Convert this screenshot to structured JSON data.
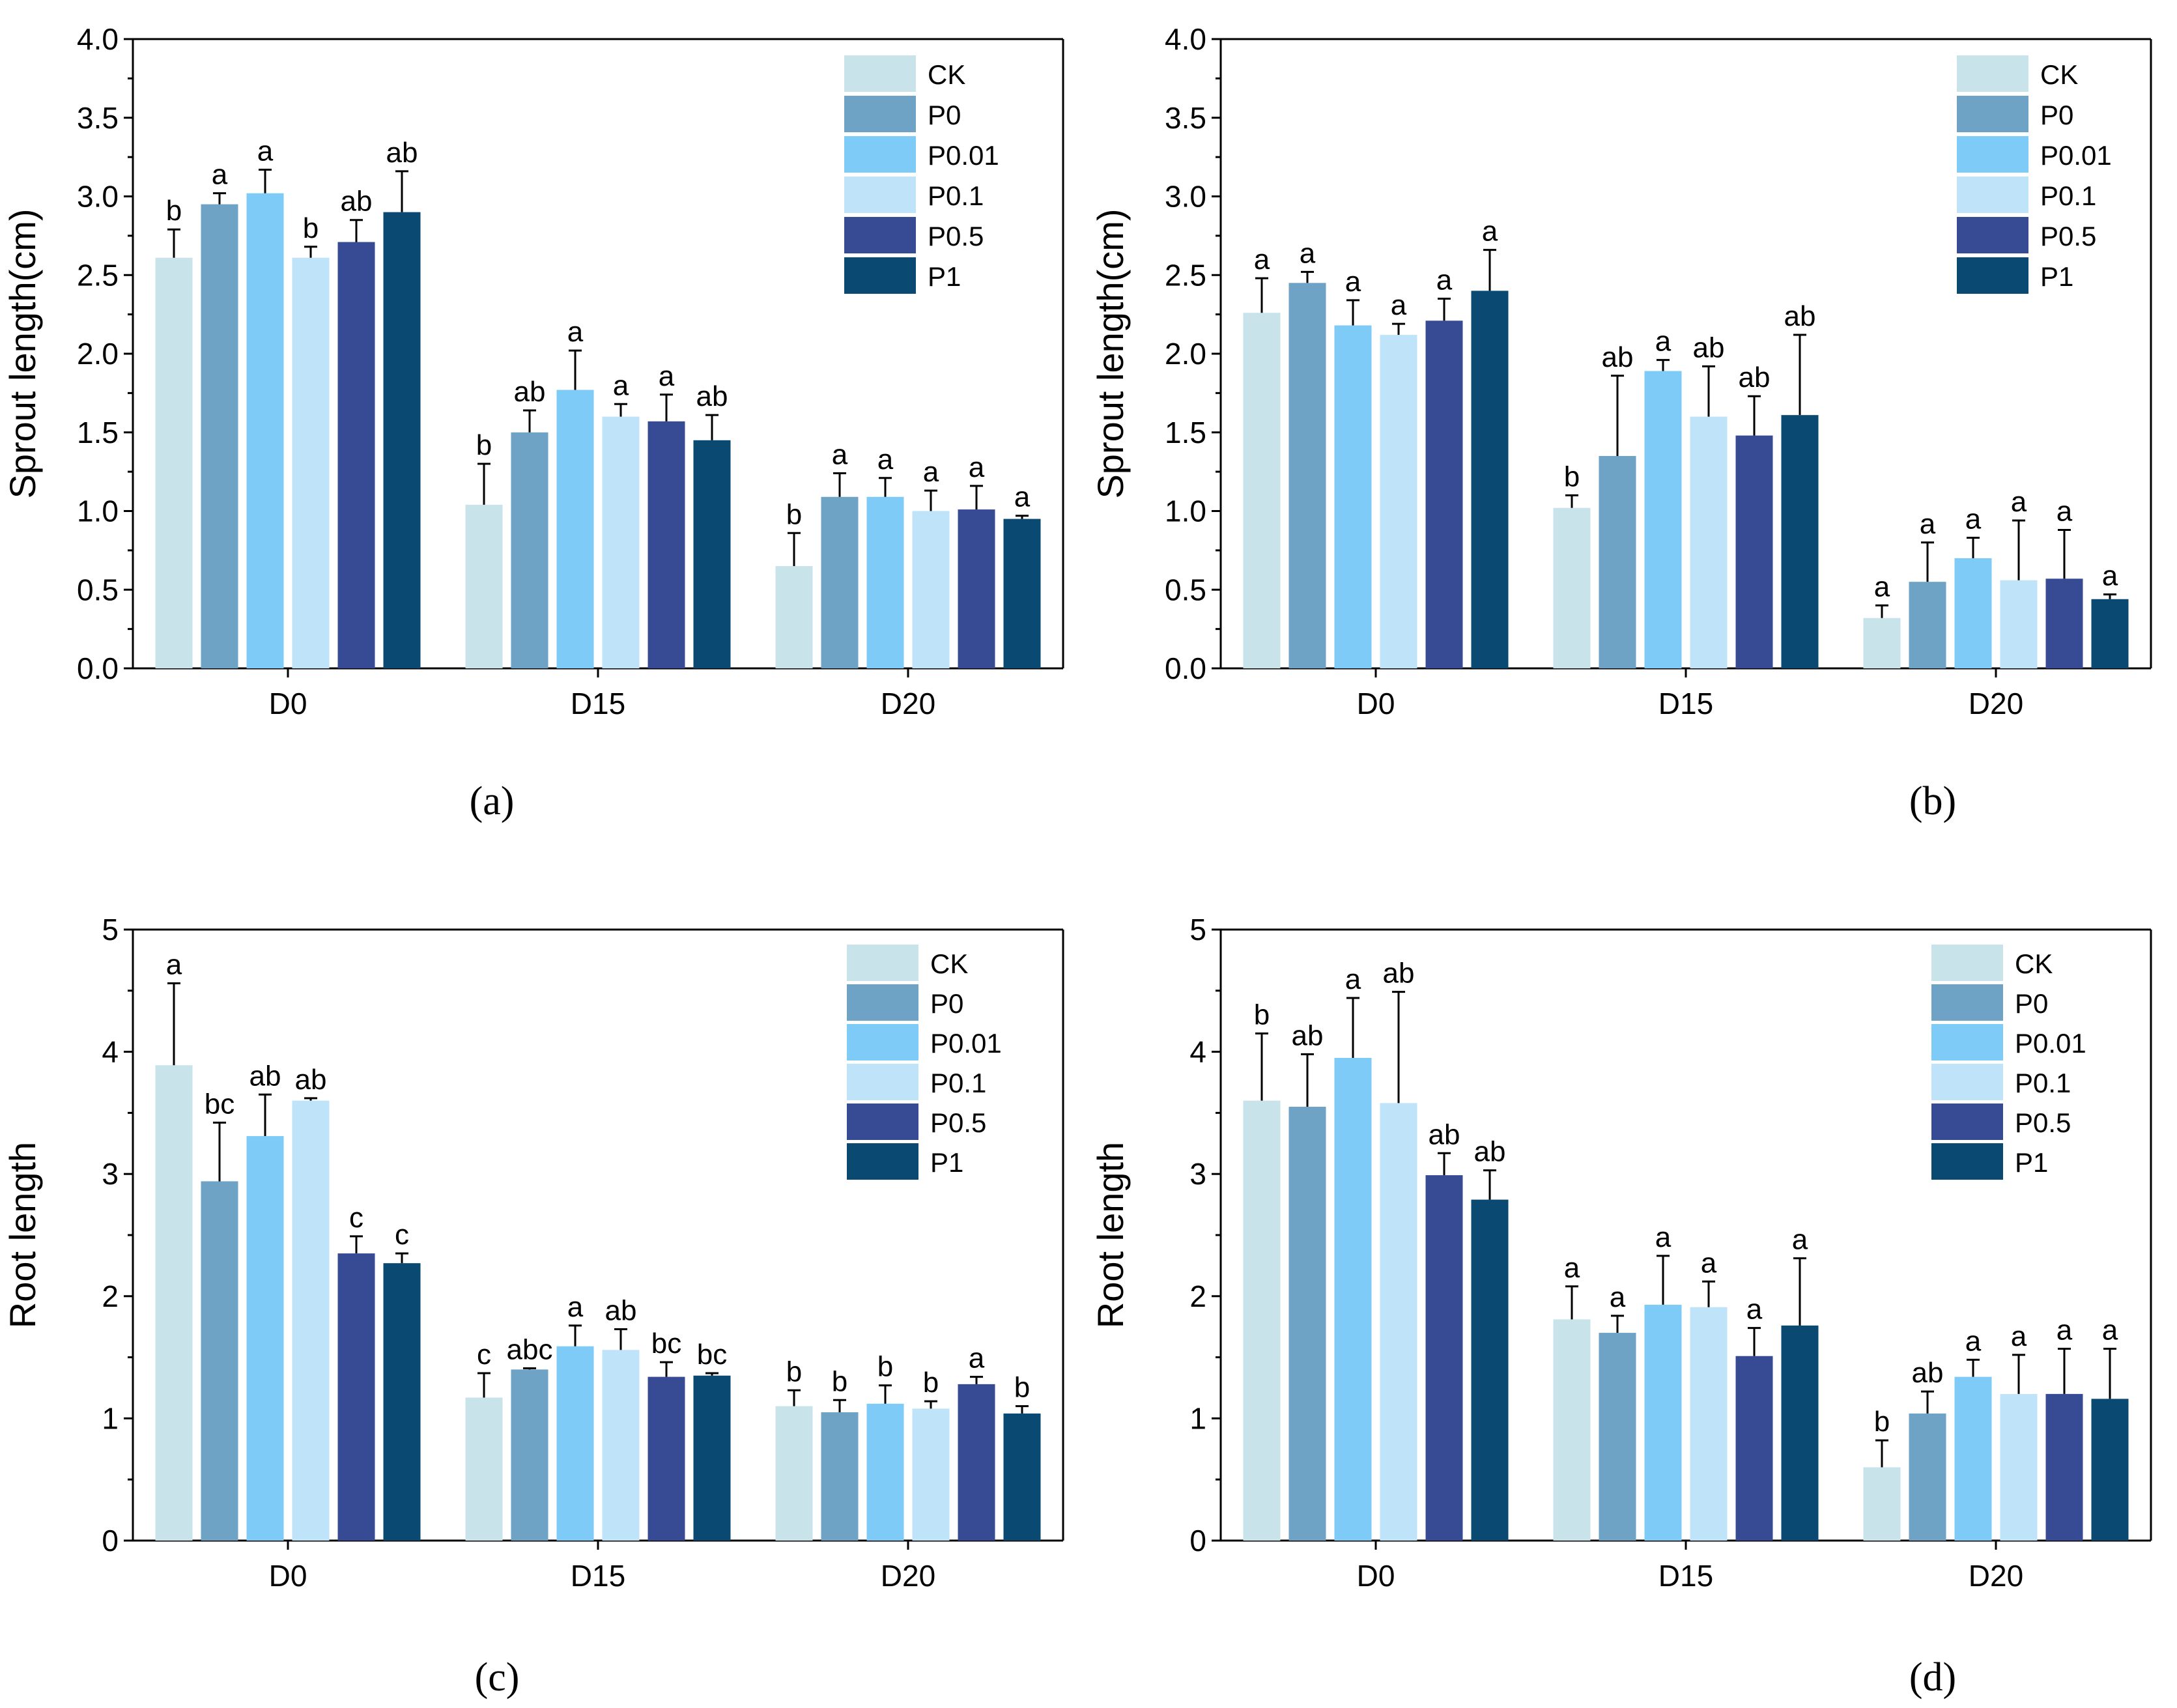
{
  "chart_data": [
    {
      "type": "bar",
      "panel_label": "(a)",
      "ylabel": "Sprout length(cm)",
      "xlabel": "",
      "ylim": [
        0,
        4.0
      ],
      "yticks": [
        "0.0",
        "0.5",
        "1.0",
        "1.5",
        "2.0",
        "2.5",
        "3.0",
        "3.5",
        "4.0"
      ],
      "categories": [
        "D0",
        "D15",
        "D20"
      ],
      "legend_placement": "top-right",
      "error_bars": true,
      "series": [
        {
          "name": "CK",
          "color": "#c9e3ea",
          "values": [
            2.61,
            1.04,
            0.65
          ],
          "errors": [
            0.18,
            0.26,
            0.21
          ],
          "letters": [
            "b",
            "b",
            "b"
          ]
        },
        {
          "name": "P0",
          "color": "#6fa3c6",
          "values": [
            2.95,
            1.5,
            1.09
          ],
          "errors": [
            0.07,
            0.14,
            0.15
          ],
          "letters": [
            "a",
            "ab",
            "a"
          ]
        },
        {
          "name": "P0.01",
          "color": "#7ecbf7",
          "values": [
            3.02,
            1.77,
            1.09
          ],
          "errors": [
            0.15,
            0.25,
            0.12
          ],
          "letters": [
            "a",
            "a",
            "a"
          ]
        },
        {
          "name": "P0.1",
          "color": "#bfe3f8",
          "values": [
            2.61,
            1.6,
            1.0
          ],
          "errors": [
            0.07,
            0.08,
            0.13
          ],
          "letters": [
            "b",
            "a",
            "a"
          ]
        },
        {
          "name": "P0.5",
          "color": "#374b94",
          "values": [
            2.71,
            1.57,
            1.01
          ],
          "errors": [
            0.14,
            0.17,
            0.15
          ],
          "letters": [
            "ab",
            "a",
            "a"
          ]
        },
        {
          "name": "P1",
          "color": "#0a4a72",
          "values": [
            2.9,
            1.45,
            0.95
          ],
          "errors": [
            0.26,
            0.16,
            0.02
          ],
          "letters": [
            "ab",
            "ab",
            "a"
          ]
        }
      ]
    },
    {
      "type": "bar",
      "panel_label": "(b)",
      "ylabel": "Sprout length(cm)",
      "xlabel": "",
      "ylim": [
        0,
        4.0
      ],
      "yticks": [
        "0.0",
        "0.5",
        "1.0",
        "1.5",
        "2.0",
        "2.5",
        "3.0",
        "3.5",
        "4.0"
      ],
      "categories": [
        "D0",
        "D15",
        "D20"
      ],
      "legend_placement": "top-right",
      "error_bars": true,
      "series": [
        {
          "name": "CK",
          "color": "#c9e3ea",
          "values": [
            2.26,
            1.02,
            0.32
          ],
          "errors": [
            0.22,
            0.08,
            0.08
          ],
          "letters": [
            "a",
            "b",
            "a"
          ]
        },
        {
          "name": "P0",
          "color": "#6fa3c6",
          "values": [
            2.45,
            1.35,
            0.55
          ],
          "errors": [
            0.07,
            0.51,
            0.25
          ],
          "letters": [
            "a",
            "ab",
            "a"
          ]
        },
        {
          "name": "P0.01",
          "color": "#7ecbf7",
          "values": [
            2.18,
            1.89,
            0.7
          ],
          "errors": [
            0.16,
            0.07,
            0.13
          ],
          "letters": [
            "a",
            "a",
            "a"
          ]
        },
        {
          "name": "P0.1",
          "color": "#bfe3f8",
          "values": [
            2.12,
            1.6,
            0.56
          ],
          "errors": [
            0.07,
            0.32,
            0.38
          ],
          "letters": [
            "a",
            "ab",
            "a"
          ]
        },
        {
          "name": "P0.5",
          "color": "#374b94",
          "values": [
            2.21,
            1.48,
            0.57
          ],
          "errors": [
            0.14,
            0.25,
            0.31
          ],
          "letters": [
            "a",
            "ab",
            "a"
          ]
        },
        {
          "name": "P1",
          "color": "#0a4a72",
          "values": [
            2.4,
            1.61,
            0.44
          ],
          "errors": [
            0.26,
            0.51,
            0.03
          ],
          "letters": [
            "a",
            "ab",
            "a"
          ]
        }
      ]
    },
    {
      "type": "bar",
      "panel_label": "(c)",
      "ylabel": "Root length",
      "xlabel": "",
      "ylim": [
        0,
        5
      ],
      "yticks": [
        "0",
        "1",
        "2",
        "3",
        "4",
        "5"
      ],
      "categories": [
        "D0",
        "D15",
        "D20"
      ],
      "legend_placement": "top-right",
      "error_bars": true,
      "series": [
        {
          "name": "CK",
          "color": "#c9e3ea",
          "values": [
            3.89,
            1.17,
            1.1
          ],
          "errors": [
            0.67,
            0.2,
            0.13
          ],
          "letters": [
            "a",
            "c",
            "b"
          ]
        },
        {
          "name": "P0",
          "color": "#6fa3c6",
          "values": [
            2.94,
            1.4,
            1.05
          ],
          "errors": [
            0.48,
            0.01,
            0.1
          ],
          "letters": [
            "bc",
            "abc",
            "b"
          ]
        },
        {
          "name": "P0.01",
          "color": "#7ecbf7",
          "values": [
            3.31,
            1.59,
            1.12
          ],
          "errors": [
            0.34,
            0.17,
            0.15
          ],
          "letters": [
            "ab",
            "a",
            "b"
          ]
        },
        {
          "name": "P0.1",
          "color": "#bfe3f8",
          "values": [
            3.6,
            1.56,
            1.08
          ],
          "errors": [
            0.02,
            0.17,
            0.06
          ],
          "letters": [
            "ab",
            "ab",
            "b"
          ]
        },
        {
          "name": "P0.5",
          "color": "#374b94",
          "values": [
            2.35,
            1.34,
            1.28
          ],
          "errors": [
            0.14,
            0.12,
            0.06
          ],
          "letters": [
            "c",
            "bc",
            "a"
          ]
        },
        {
          "name": "P1",
          "color": "#0a4a72",
          "values": [
            2.27,
            1.35,
            1.04
          ],
          "errors": [
            0.08,
            0.02,
            0.06
          ],
          "letters": [
            "c",
            "bc",
            "b"
          ]
        }
      ]
    },
    {
      "type": "bar",
      "panel_label": "(d)",
      "ylabel": "Root length",
      "xlabel": "",
      "ylim": [
        0,
        5
      ],
      "yticks": [
        "0",
        "1",
        "2",
        "3",
        "4",
        "5"
      ],
      "categories": [
        "D0",
        "D15",
        "D20"
      ],
      "legend_placement": "top-right",
      "error_bars": true,
      "series": [
        {
          "name": "CK",
          "color": "#c9e3ea",
          "values": [
            3.6,
            1.81,
            0.6
          ],
          "errors": [
            0.55,
            0.27,
            0.22
          ],
          "letters": [
            "b",
            "a",
            "b"
          ]
        },
        {
          "name": "P0",
          "color": "#6fa3c6",
          "values": [
            3.55,
            1.7,
            1.04
          ],
          "errors": [
            0.43,
            0.14,
            0.18
          ],
          "letters": [
            "ab",
            "a",
            "ab"
          ]
        },
        {
          "name": "P0.01",
          "color": "#7ecbf7",
          "values": [
            3.95,
            1.93,
            1.34
          ],
          "errors": [
            0.49,
            0.4,
            0.14
          ],
          "letters": [
            "a",
            "a",
            "a"
          ]
        },
        {
          "name": "P0.1",
          "color": "#bfe3f8",
          "values": [
            3.58,
            1.91,
            1.2
          ],
          "errors": [
            0.91,
            0.21,
            0.32
          ],
          "letters": [
            "ab",
            "a",
            "a"
          ]
        },
        {
          "name": "P0.5",
          "color": "#374b94",
          "values": [
            2.99,
            1.51,
            1.2
          ],
          "errors": [
            0.18,
            0.23,
            0.37
          ],
          "letters": [
            "ab",
            "a",
            "a"
          ]
        },
        {
          "name": "P1",
          "color": "#0a4a72",
          "values": [
            2.79,
            1.76,
            1.16
          ],
          "errors": [
            0.24,
            0.55,
            0.41
          ],
          "letters": [
            "ab",
            "a",
            "a"
          ]
        }
      ]
    }
  ]
}
